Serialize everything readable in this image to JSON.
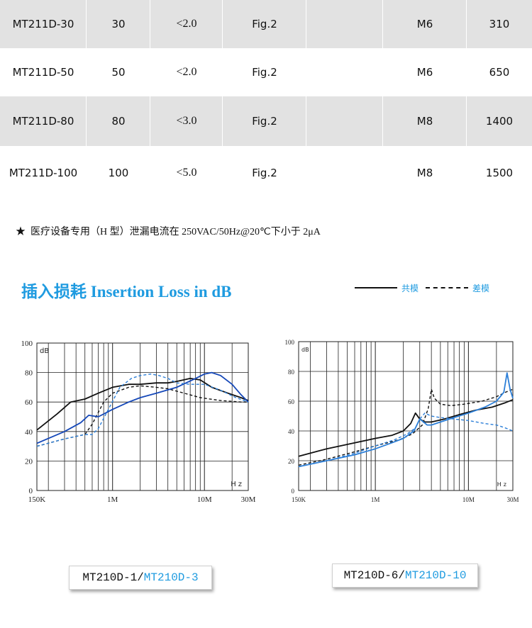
{
  "spec_table": {
    "rows": [
      {
        "model": "MT211D-30",
        "current": "30",
        "leakage": "<2.0",
        "figure": "Fig.2",
        "blank": "",
        "screw": "M6",
        "weight": "310"
      },
      {
        "model": "MT211D-50",
        "current": "50",
        "leakage": "<2.0",
        "figure": "Fig.2",
        "blank": "",
        "screw": "M6",
        "weight": "650"
      },
      {
        "model": "MT211D-80",
        "current": "80",
        "leakage": "<3.0",
        "figure": "Fig.2",
        "blank": "",
        "screw": "M8",
        "weight": "1400"
      },
      {
        "model": "MT211D-100",
        "current": "100",
        "leakage": "<5.0",
        "figure": "Fig.2",
        "blank": "",
        "screw": "M8",
        "weight": "1500"
      }
    ]
  },
  "note": {
    "marker": "★",
    "text": "医疗设备专用（H 型）泄漏电流在 250VAC/50Hz@20℃下小于 2μA"
  },
  "section": {
    "title": "插入损耗 Insertion Loss in dB",
    "legend": [
      {
        "label": "共模",
        "style": "solid"
      },
      {
        "label": "差模",
        "style": "dashed"
      }
    ]
  },
  "colors": {
    "accent_blue": "#1f9be0",
    "series_blue": "#1447b8",
    "series_light_blue": "#2c7fd8",
    "row_shade": "#e2e2e2"
  },
  "chart_data": [
    {
      "type": "line",
      "x_scale": "log",
      "xlim": [
        0.15,
        30
      ],
      "ylim": [
        0,
        100
      ],
      "y_ticks": [
        "0",
        "20",
        "40",
        "60",
        "80",
        "100"
      ],
      "x_tick_labels": [
        "150K",
        "1M",
        "10M",
        "30M"
      ],
      "y_unit": "dB",
      "x_unit": "Hz",
      "grid": true,
      "series": [
        {
          "color": "#111111",
          "dash": false,
          "x": [
            0.15,
            0.25,
            0.35,
            0.5,
            0.7,
            1.0,
            1.5,
            2.0,
            3.0,
            4.0,
            5.0,
            7.0,
            9.0,
            12.0,
            18.0,
            25.0,
            30.0
          ],
          "y": [
            41,
            52,
            60,
            62,
            66,
            70,
            72,
            72,
            73,
            73,
            74,
            76,
            75,
            70,
            66,
            63,
            61
          ]
        },
        {
          "color": "#111111",
          "dash": true,
          "x": [
            0.15,
            0.3,
            0.5,
            0.6,
            0.8,
            1.0,
            1.5,
            2.0,
            3.0,
            4.0,
            6.0,
            9.0,
            15.0,
            25.0,
            30.0
          ],
          "y": [
            30,
            35,
            38,
            45,
            60,
            66,
            70,
            71,
            70,
            69,
            66,
            63,
            61,
            60,
            60
          ]
        },
        {
          "color": "#1447b8",
          "dash": false,
          "x": [
            0.15,
            0.3,
            0.45,
            0.55,
            0.7,
            1.0,
            1.5,
            2.0,
            3.0,
            5.0,
            8.0,
            10.0,
            12.0,
            15.0,
            20.0,
            25.0,
            30.0
          ],
          "y": [
            32,
            40,
            46,
            51,
            50,
            55,
            60,
            63,
            66,
            70,
            76,
            79,
            80,
            78,
            72,
            65,
            60
          ]
        },
        {
          "color": "#2c7fd8",
          "dash": true,
          "x": [
            0.15,
            0.3,
            0.5,
            0.6,
            0.7,
            0.9,
            1.2,
            1.6,
            2.0,
            2.6,
            3.2,
            4.0,
            5.0,
            7.0,
            10.0,
            15.0,
            22.0,
            30.0
          ],
          "y": [
            30,
            35,
            38,
            38,
            42,
            55,
            70,
            76,
            78,
            79,
            78,
            76,
            73,
            72,
            72,
            68,
            63,
            60
          ]
        }
      ]
    },
    {
      "type": "line",
      "x_scale": "log",
      "xlim": [
        0.15,
        30
      ],
      "ylim": [
        0,
        100
      ],
      "y_ticks": [
        "0",
        "20",
        "40",
        "60",
        "80",
        "100"
      ],
      "x_tick_labels": [
        "150K",
        "1M",
        "10M",
        "30M"
      ],
      "y_unit": "dB",
      "x_unit": "Hz",
      "grid": true,
      "series": [
        {
          "color": "#111111",
          "dash": false,
          "x": [
            0.15,
            0.3,
            0.6,
            1.0,
            1.5,
            2.0,
            2.4,
            2.7,
            3.0,
            3.4,
            4.0,
            5.5,
            8.0,
            12.0,
            18.0,
            25.0,
            30.0
          ],
          "y": [
            23,
            28,
            32,
            35,
            37,
            40,
            45,
            52,
            48,
            46,
            46,
            48,
            51,
            54,
            56,
            59,
            61
          ]
        },
        {
          "color": "#111111",
          "dash": true,
          "x": [
            0.15,
            0.3,
            0.6,
            1.0,
            1.8,
            2.5,
            3.2,
            3.7,
            4.0,
            4.3,
            5.0,
            6.5,
            9.0,
            14.0,
            20.0,
            25.0,
            30.0
          ],
          "y": [
            17,
            21,
            26,
            30,
            34,
            38,
            44,
            55,
            68,
            62,
            58,
            57,
            58,
            60,
            63,
            66,
            68
          ]
        },
        {
          "color": "#2c7fd8",
          "dash": false,
          "x": [
            0.15,
            0.3,
            0.6,
            1.0,
            1.5,
            2.0,
            2.6,
            3.0,
            3.3,
            3.6,
            4.0,
            5.0,
            7.0,
            10.0,
            15.0,
            20.0,
            24.0,
            26.0,
            28.0,
            30.0
          ],
          "y": [
            16,
            20,
            24,
            28,
            32,
            35,
            40,
            48,
            46,
            44,
            44,
            46,
            49,
            52,
            56,
            60,
            66,
            79,
            68,
            62
          ]
        },
        {
          "color": "#2c7fd8",
          "dash": true,
          "x": [
            0.15,
            0.3,
            0.6,
            1.0,
            1.6,
            2.2,
            2.7,
            3.0,
            3.4,
            4.0,
            5.0,
            7.0,
            10.0,
            15.0,
            20.0,
            25.0,
            30.0
          ],
          "y": [
            16,
            20,
            25,
            30,
            34,
            38,
            42,
            48,
            52,
            50,
            49,
            48,
            47,
            45,
            44,
            42,
            40
          ]
        }
      ]
    }
  ],
  "captions": [
    {
      "part1": "MT210D-1",
      "sep": "/",
      "part2": "MT210D-3"
    },
    {
      "part1": "MT210D-6",
      "sep": "/",
      "part2": "MT210D-10"
    }
  ]
}
